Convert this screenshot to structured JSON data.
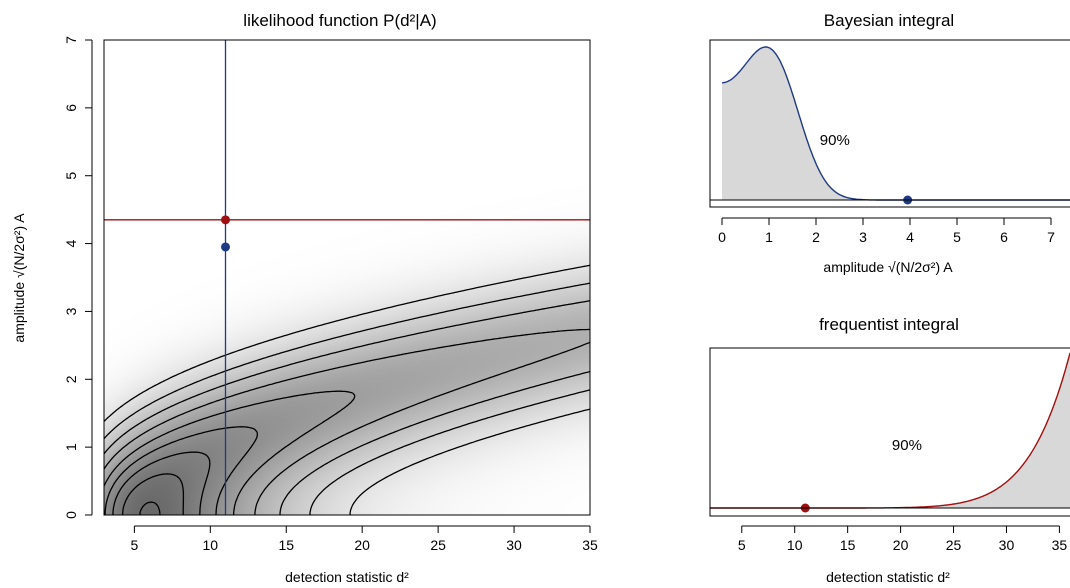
{
  "colors": {
    "blue": "#1f3a85",
    "red": "#a01010",
    "shade": "#d8d8d8",
    "contour": "#000000"
  },
  "chart_data": [
    {
      "type": "contour",
      "title": "likelihood function P(d²|A)",
      "xlabel": "detection statistic d²",
      "ylabel": "amplitude √(N/2σ²) A",
      "xlim": [
        3,
        35
      ],
      "ylim": [
        0,
        7
      ],
      "xticks": [
        "5",
        "10",
        "15",
        "20",
        "25",
        "30",
        "35"
      ],
      "yticks": [
        "0",
        "1",
        "2",
        "3",
        "4",
        "5",
        "6",
        "7"
      ],
      "observed_d2": 11,
      "bayesian_upper_limit": 3.95,
      "frequentist_upper_limit": 4.35,
      "contour_levels": [
        0.005,
        0.012,
        0.022,
        0.035,
        0.05,
        0.065,
        0.08,
        0.095,
        0.11,
        0.125,
        0.14
      ]
    },
    {
      "type": "area",
      "title": "Bayesian integral",
      "xlabel": "amplitude √(N/2σ²) A",
      "xlim": [
        0,
        7
      ],
      "xticks": [
        "0",
        "1",
        "2",
        "3",
        "4",
        "5",
        "6",
        "7"
      ],
      "shaded_range": [
        0,
        3.95
      ],
      "shaded_label": "90%",
      "marker_x": 3.95
    },
    {
      "type": "area",
      "title": "frequentist integral",
      "xlabel": "detection statistic d²",
      "xlim": [
        2,
        36
      ],
      "xticks": [
        "5",
        "10",
        "15",
        "20",
        "25",
        "30",
        "35"
      ],
      "shaded_range": [
        11,
        36
      ],
      "shaded_label": "90%",
      "marker_x": 11
    }
  ]
}
